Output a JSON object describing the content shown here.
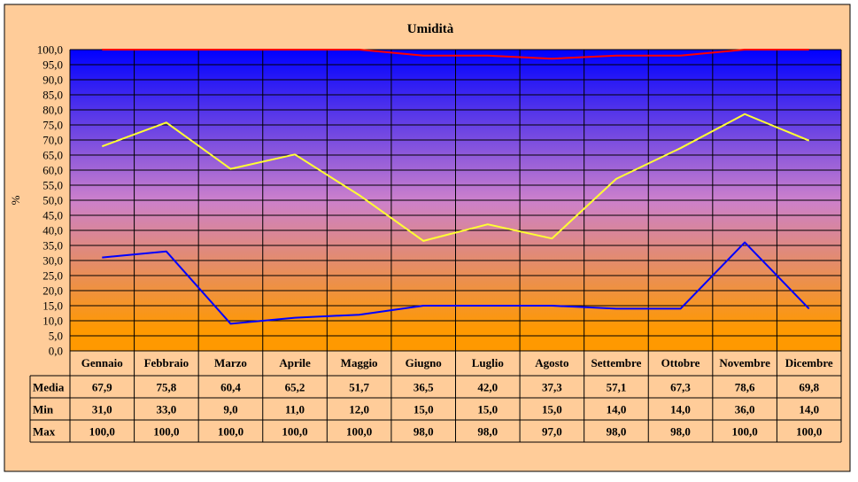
{
  "chart_data": {
    "type": "line",
    "title": "Umidità",
    "ylabel": "%",
    "xlabel": "",
    "ylim": [
      0,
      100
    ],
    "y_ticks": [
      "0,0",
      "5,0",
      "10,0",
      "15,0",
      "20,0",
      "25,0",
      "30,0",
      "35,0",
      "40,0",
      "45,0",
      "50,0",
      "55,0",
      "60,0",
      "65,0",
      "70,0",
      "75,0",
      "80,0",
      "85,0",
      "90,0",
      "95,0",
      "100,0"
    ],
    "categories": [
      "Gennaio",
      "Febbraio",
      "Marzo",
      "Aprile",
      "Maggio",
      "Giugno",
      "Luglio",
      "Agosto",
      "Settembre",
      "Ottobre",
      "Novembre",
      "Dicembre"
    ],
    "grid": true,
    "legend": "data-table",
    "series": [
      {
        "name": "Media",
        "color": "#ffff33",
        "values": [
          67.9,
          75.8,
          60.4,
          65.2,
          51.7,
          36.5,
          42.0,
          37.3,
          57.1,
          67.3,
          78.6,
          69.8
        ],
        "labels": [
          "67,9",
          "75,8",
          "60,4",
          "65,2",
          "51,7",
          "36,5",
          "42,0",
          "37,3",
          "57,1",
          "67,3",
          "78,6",
          "69,8"
        ]
      },
      {
        "name": "Min",
        "color": "#0000ff",
        "values": [
          31.0,
          33.0,
          9.0,
          11.0,
          12.0,
          15.0,
          15.0,
          15.0,
          14.0,
          14.0,
          36.0,
          14.0
        ],
        "labels": [
          "31,0",
          "33,0",
          "9,0",
          "11,0",
          "12,0",
          "15,0",
          "15,0",
          "15,0",
          "14,0",
          "14,0",
          "36,0",
          "14,0"
        ]
      },
      {
        "name": "Max",
        "color": "#ff0000",
        "values": [
          100.0,
          100.0,
          100.0,
          100.0,
          100.0,
          98.0,
          98.0,
          97.0,
          98.0,
          98.0,
          100.0,
          100.0
        ],
        "labels": [
          "100,0",
          "100,0",
          "100,0",
          "100,0",
          "100,0",
          "98,0",
          "98,0",
          "97,0",
          "98,0",
          "98,0",
          "100,0",
          "100,0"
        ]
      }
    ],
    "colors": {
      "background": "#ffcc99",
      "plot_top": "#0000ff",
      "plot_mid": "#cc80cc",
      "plot_bottom": "#ff9900"
    }
  }
}
